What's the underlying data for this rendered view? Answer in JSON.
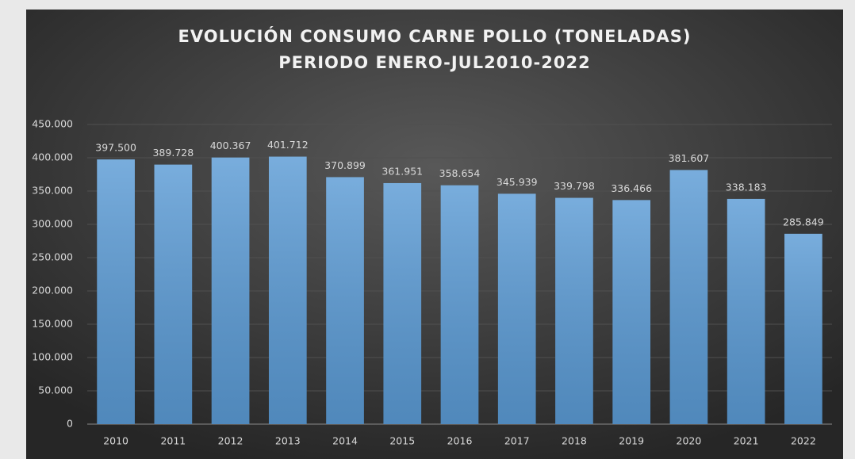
{
  "chart_data": {
    "type": "bar",
    "title": "EVOLUCIÓN CONSUMO CARNE POLLO (TONELADAS)",
    "subtitle": "PERIODO ENERO-JUL2010-2022",
    "categories": [
      "2010",
      "2011",
      "2012",
      "2013",
      "2014",
      "2015",
      "2016",
      "2017",
      "2018",
      "2019",
      "2020",
      "2021",
      "2022"
    ],
    "values": [
      397500,
      389728,
      400367,
      401712,
      370899,
      361951,
      358654,
      345939,
      339798,
      336466,
      381607,
      338183,
      285849
    ],
    "value_labels": [
      "397.500",
      "389.728",
      "400.367",
      "401.712",
      "370.899",
      "361.951",
      "358.654",
      "345.939",
      "339.798",
      "336.466",
      "381.607",
      "338.183",
      "285.849"
    ],
    "color": "#5b9bd5",
    "ylim": [
      0,
      450000
    ],
    "yticks": [
      0,
      {
        "value": 50000,
        "label": "50.000"
      },
      {
        "value": 100000,
        "label": "100.000"
      },
      {
        "value": 150000,
        "label": "150.000"
      },
      {
        "value": 200000,
        "label": "200.000"
      },
      {
        "value": 250000,
        "label": "250.000"
      },
      {
        "value": 300000,
        "label": "300.000"
      },
      {
        "value": 350000,
        "label": "350.000"
      },
      {
        "value": 400000,
        "label": "400.000"
      },
      {
        "value": 450000,
        "label": "450.000"
      }
    ],
    "grid": true
  }
}
